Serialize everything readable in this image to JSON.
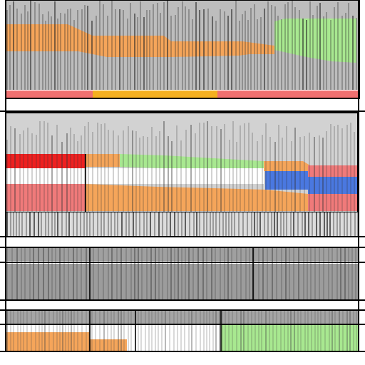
{
  "panels": [
    {
      "id": "panel-1",
      "background": "#bdbdbd",
      "bands": [
        {
          "name": "orange-band",
          "color": "#f5a55a"
        },
        {
          "name": "green-band",
          "color": "#a8e890"
        }
      ],
      "status_segments": [
        {
          "name": "red-segment",
          "color": "#f07070"
        },
        {
          "name": "yellow-segment",
          "color": "#f5b020"
        },
        {
          "name": "red-segment-2",
          "color": "#f07070"
        }
      ]
    },
    {
      "id": "panel-2",
      "background": "#d2d2d2",
      "bands": [
        {
          "name": "red-block",
          "color": "#ee2020"
        },
        {
          "name": "salmon-block",
          "color": "#f07a7a"
        },
        {
          "name": "orange-block",
          "color": "#f5a55a"
        },
        {
          "name": "green-block",
          "color": "#a8e890"
        },
        {
          "name": "blue-block",
          "color": "#4a78e0"
        }
      ]
    },
    {
      "id": "panel-3",
      "background": "#dcdcdc"
    },
    {
      "id": "panel-4",
      "background": "#9c9c9c"
    },
    {
      "id": "panel-5",
      "background": "#a5a5a5",
      "bands": [
        {
          "name": "orange-block",
          "color": "#f5a55a"
        },
        {
          "name": "green-block",
          "color": "#a8e890"
        }
      ]
    }
  ]
}
